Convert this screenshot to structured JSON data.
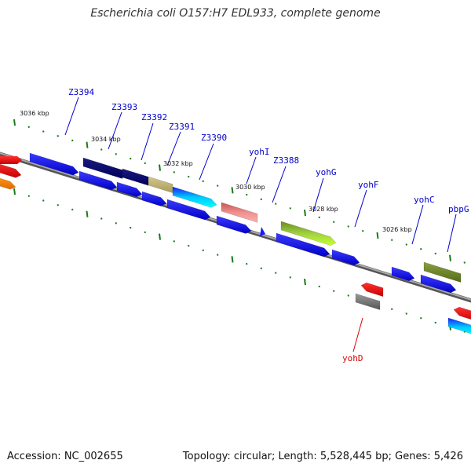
{
  "title": "Escherichia coli O157:H7 EDL933, complete genome",
  "footer": {
    "accession": "Accession: NC_002655",
    "topology": "Topology: circular; Length: 5,528,445 bp; Genes: 5,426"
  },
  "kbp_markers": [
    "3036 kbp",
    "3034 kbp",
    "3032 kbp",
    "3030 kbp",
    "3028 kbp",
    "3026 kbp"
  ],
  "gene_labels": [
    {
      "name": "Z3394",
      "color": "#0000cc"
    },
    {
      "name": "Z3393",
      "color": "#0000cc"
    },
    {
      "name": "Z3392",
      "color": "#0000cc"
    },
    {
      "name": "Z3391",
      "color": "#0000cc"
    },
    {
      "name": "Z3390",
      "color": "#0000cc"
    },
    {
      "name": "yohI",
      "color": "#0000cc"
    },
    {
      "name": "Z3388",
      "color": "#0000cc"
    },
    {
      "name": "yohG",
      "color": "#0000cc"
    },
    {
      "name": "yohF",
      "color": "#0000cc"
    },
    {
      "name": "yohC",
      "color": "#0000cc"
    },
    {
      "name": "pbpG",
      "color": "#0000cc"
    },
    {
      "name": "yohD",
      "color": "#dd0000"
    }
  ],
  "colors": {
    "backbone": "#808080",
    "tick": "#1a7a1a",
    "label_blue": "#0000cc",
    "label_red": "#dd0000"
  }
}
